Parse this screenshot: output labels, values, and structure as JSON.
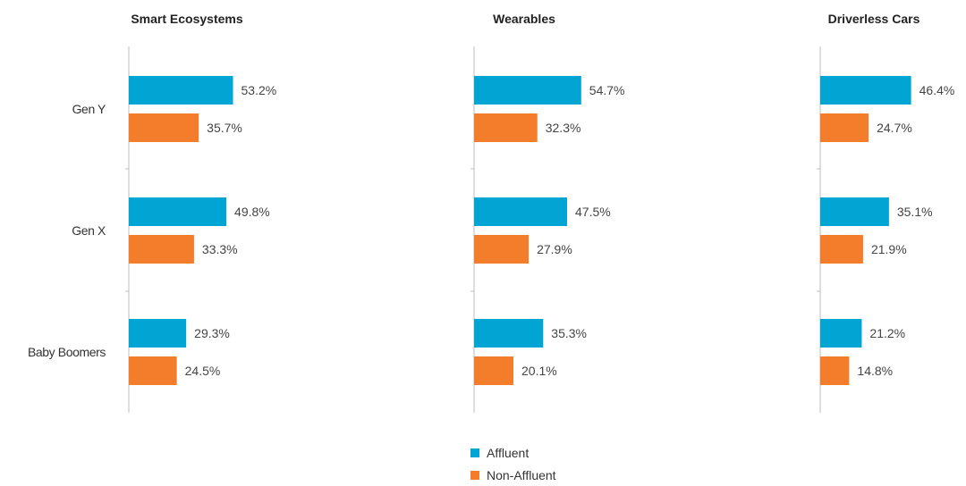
{
  "chart_data": {
    "type": "bar",
    "orientation": "horizontal",
    "categories": [
      "Gen Y",
      "Gen X",
      "Baby Boomers"
    ],
    "value_suffix": "%",
    "panels": [
      {
        "title": "Smart Ecosystems",
        "series": [
          {
            "name": "Affluent",
            "values": [
              53.2,
              49.8,
              29.3
            ]
          },
          {
            "name": "Non-Affluent",
            "values": [
              35.7,
              33.3,
              24.5
            ]
          }
        ]
      },
      {
        "title": "Wearables",
        "series": [
          {
            "name": "Affluent",
            "values": [
              54.7,
              47.5,
              35.3
            ]
          },
          {
            "name": "Non-Affluent",
            "values": [
              32.3,
              27.9,
              20.1
            ]
          }
        ]
      },
      {
        "title": "Driverless Cars",
        "series": [
          {
            "name": "Affluent",
            "values": [
              46.4,
              35.1,
              21.2
            ]
          },
          {
            "name": "Non-Affluent",
            "values": [
              24.7,
              21.9,
              14.8
            ]
          }
        ]
      }
    ],
    "colors": {
      "Affluent": "#00a5d4",
      "Non-Affluent": "#f47d2b"
    },
    "legend": {
      "placement": "bottom-center",
      "items": [
        "Affluent",
        "Non-Affluent"
      ]
    }
  }
}
